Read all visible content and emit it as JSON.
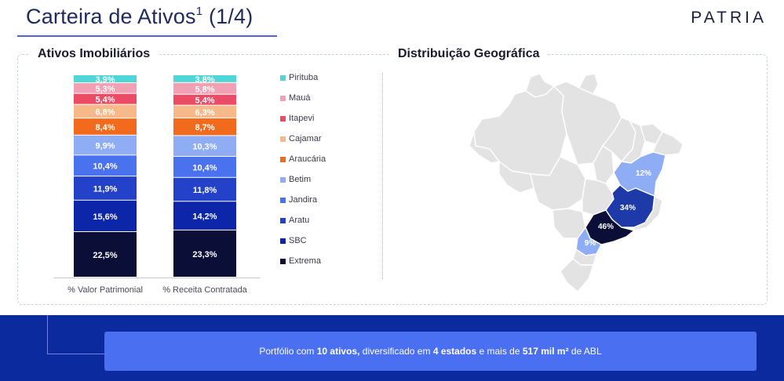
{
  "header": {
    "title": "Carteira de Ativos",
    "title_sup": "1",
    "title_suffix": "(1/4)",
    "brand": "PATRIA"
  },
  "sections": {
    "left_heading": "Ativos Imobiliários",
    "right_heading": "Distribuição Geográfica"
  },
  "colors": {
    "Pirituba": "#4fd6d6",
    "Mauá": "#f2a0b4",
    "Itapevi": "#ec4b66",
    "Cajamar": "#f7b88a",
    "Araucária": "#f26b1d",
    "Betim": "#8fadf4",
    "Jandira": "#4a72ef",
    "Aratu": "#2341c9",
    "SBC": "#0d25a8",
    "Extrema": "#0b0f38"
  },
  "chart_data": {
    "type": "bar",
    "stacked": true,
    "categories": [
      "% Valor Patrimonial",
      "% Receita Contratada"
    ],
    "series": [
      {
        "name": "Extrema",
        "values": [
          22.5,
          23.3
        ],
        "labels": [
          "22,5%",
          "23,3%"
        ]
      },
      {
        "name": "SBC",
        "values": [
          15.6,
          14.2
        ],
        "labels": [
          "15,6%",
          "14,2%"
        ]
      },
      {
        "name": "Aratu",
        "values": [
          11.9,
          11.8
        ],
        "labels": [
          "11,9%",
          "11,8%"
        ]
      },
      {
        "name": "Jandira",
        "values": [
          10.4,
          10.4
        ],
        "labels": [
          "10,4%",
          "10,4%"
        ]
      },
      {
        "name": "Betim",
        "values": [
          9.9,
          10.3
        ],
        "labels": [
          "9,9%",
          "10,3%"
        ]
      },
      {
        "name": "Araucária",
        "values": [
          8.4,
          8.7
        ],
        "labels": [
          "8,4%",
          "8,7%"
        ]
      },
      {
        "name": "Cajamar",
        "values": [
          6.8,
          6.3
        ],
        "labels": [
          "6,8%",
          "6,3%"
        ]
      },
      {
        "name": "Itapevi",
        "values": [
          5.4,
          5.4
        ],
        "labels": [
          "5,4%",
          "5,4%"
        ]
      },
      {
        "name": "Mauá",
        "values": [
          5.3,
          5.8
        ],
        "labels": [
          "5,3%",
          "5,8%"
        ]
      },
      {
        "name": "Pirituba",
        "values": [
          3.9,
          3.8
        ],
        "labels": [
          "3,9%",
          "3,8%"
        ]
      }
    ],
    "legend_order": [
      "Pirituba",
      "Mauá",
      "Itapevi",
      "Cajamar",
      "Araucária",
      "Betim",
      "Jandira",
      "Aratu",
      "SBC",
      "Extrema"
    ],
    "legend_position": "right",
    "ylim": [
      0,
      100
    ]
  },
  "geo": {
    "regions": [
      {
        "name": "MG",
        "value": 34,
        "label": "34%",
        "color": "#1e3aa8"
      },
      {
        "name": "SP",
        "value": 46,
        "label": "46%",
        "color": "#0b0f38"
      },
      {
        "name": "BA",
        "value": 12,
        "label": "12%",
        "color": "#8fadf4"
      },
      {
        "name": "PR",
        "value": 9,
        "label": "9%",
        "color": "#8fadf4"
      }
    ]
  },
  "footer": {
    "text_1": "Portfólio com ",
    "bold_1": "10 ativos,",
    "text_2": " diversificado em ",
    "bold_2": "4 estados",
    "text_3": " e mais de ",
    "bold_3": "517 mil m²",
    "text_4": " de ABL"
  }
}
